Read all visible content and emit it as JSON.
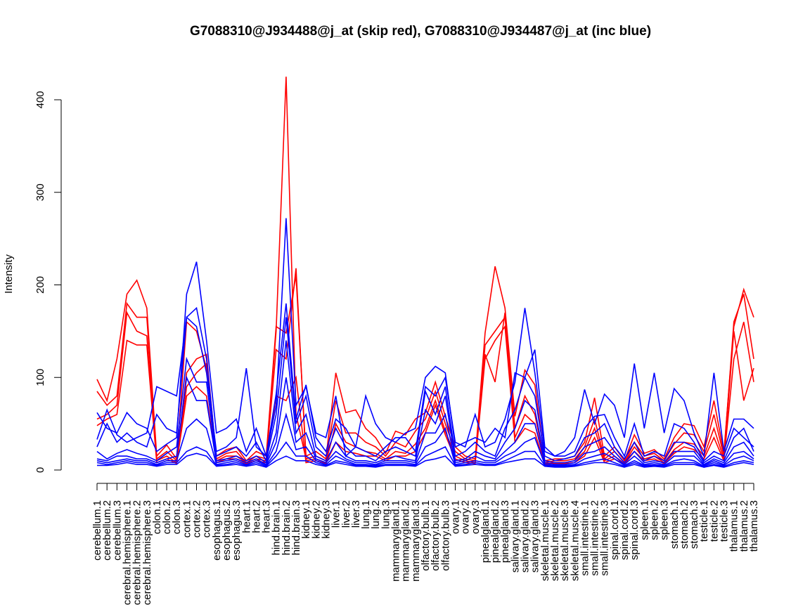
{
  "chart_data": {
    "type": "line",
    "title": "G7088310@J934488@j_at (skip red), G7088310@J934487@j_at (inc blue)",
    "xlabel": "",
    "ylabel": "Intensity",
    "ylim": [
      0,
      420
    ],
    "yticks": [
      0,
      100,
      200,
      300,
      400
    ],
    "grid": false,
    "categories": [
      "cerebellum.1",
      "cerebellum.2",
      "cerebellum.3",
      "cerebral.hemisphere.1",
      "cerebral.hemisphere.2",
      "cerebral.hemisphere.3",
      "colon.1",
      "colon.2",
      "colon.3",
      "cortex.1",
      "cortex.2",
      "cortex.3",
      "esophagus.1",
      "esophagus.2",
      "esophagus.3",
      "heart.1",
      "heart.2",
      "heart.3",
      "hind.brain.1",
      "hind.brain.2",
      "hind.brain.3",
      "kidney.1",
      "kidney.2",
      "kidney.3",
      "liver.1",
      "liver.2",
      "liver.3",
      "lung.1",
      "lung.2",
      "lung.3",
      "mammarygland.1",
      "mammarygland.2",
      "mammarygland.3",
      "olfactory.bulb.1",
      "olfactory.bulb.2",
      "olfactory.bulb.3",
      "ovary.1",
      "ovary.2",
      "ovary.3",
      "pinealgland.1",
      "pinealgland.2",
      "pinealgland.3",
      "salivary.gland.1",
      "salivary.gland.2",
      "salivary.gland.3",
      "skeletal.muscle.1",
      "skeletal.muscle.2",
      "skeletal.muscle.3",
      "skeletal.muscle.4",
      "small.intestine.1",
      "small.intestine.2",
      "small.intestine.3",
      "spinal.cord.1",
      "spinal.cord.2",
      "spinal.cord.3",
      "spleen.1",
      "spleen.2",
      "spleen.3",
      "stomach.1",
      "stomach.2",
      "stomach.3",
      "testicle.1",
      "testicle.2",
      "testicle.3",
      "thalamus.1",
      "thalamus.2",
      "thalamus.3"
    ],
    "series": [
      {
        "color": "#ff0000",
        "values": [
          98,
          75,
          120,
          190,
          205,
          175,
          15,
          27,
          12,
          160,
          150,
          110,
          15,
          22,
          25,
          10,
          20,
          15,
          155,
          148,
          210,
          15,
          20,
          12,
          105,
          62,
          65,
          45,
          35,
          18,
          42,
          38,
          55,
          62,
          95,
          58,
          25,
          15,
          12,
          148,
          220,
          175,
          58,
          108,
          92,
          10,
          12,
          12,
          15,
          30,
          78,
          15,
          25,
          10,
          38,
          18,
          22,
          12,
          35,
          50,
          48,
          25,
          75,
          18,
          155,
          195,
          165
        ]
      },
      {
        "color": "#ff0000",
        "values": [
          85,
          70,
          80,
          180,
          165,
          165,
          12,
          20,
          10,
          105,
          120,
          125,
          12,
          18,
          20,
          8,
          15,
          12,
          150,
          425,
          60,
          12,
          15,
          10,
          75,
          40,
          40,
          30,
          25,
          15,
          30,
          25,
          42,
          55,
          85,
          50,
          20,
          12,
          10,
          135,
          150,
          165,
          45,
          80,
          60,
          8,
          10,
          10,
          12,
          25,
          55,
          12,
          20,
          8,
          30,
          15,
          18,
          10,
          28,
          40,
          38,
          20,
          60,
          15,
          160,
          190,
          120
        ]
      },
      {
        "color": "#ff0000",
        "values": [
          55,
          60,
          70,
          170,
          150,
          145,
          10,
          15,
          8,
          90,
          105,
          115,
          10,
          15,
          15,
          8,
          12,
          10,
          130,
          120,
          218,
          10,
          12,
          8,
          50,
          30,
          25,
          20,
          18,
          12,
          20,
          18,
          28,
          45,
          75,
          42,
          15,
          10,
          8,
          125,
          95,
          170,
          35,
          60,
          50,
          7,
          8,
          8,
          10,
          20,
          45,
          10,
          15,
          7,
          25,
          12,
          15,
          8,
          22,
          30,
          28,
          15,
          45,
          12,
          150,
          75,
          110
        ]
      },
      {
        "color": "#ff0000",
        "values": [
          48,
          55,
          60,
          140,
          135,
          135,
          8,
          12,
          7,
          80,
          90,
          80,
          8,
          12,
          12,
          7,
          10,
          8,
          80,
          75,
          100,
          8,
          10,
          7,
          30,
          20,
          18,
          15,
          15,
          10,
          15,
          15,
          20,
          40,
          70,
          38,
          12,
          8,
          7,
          120,
          140,
          155,
          30,
          45,
          40,
          6,
          7,
          7,
          8,
          15,
          35,
          8,
          12,
          6,
          20,
          10,
          12,
          7,
          18,
          25,
          22,
          12,
          35,
          10,
          120,
          160,
          95
        ]
      },
      {
        "color": "#0000ff",
        "values": [
          62,
          45,
          40,
          62,
          50,
          45,
          20,
          28,
          35,
          190,
          225,
          140,
          40,
          45,
          55,
          20,
          45,
          15,
          70,
          272,
          70,
          90,
          40,
          35,
          80,
          15,
          25,
          80,
          50,
          35,
          30,
          40,
          45,
          100,
          112,
          105,
          25,
          30,
          35,
          30,
          45,
          35,
          105,
          100,
          130,
          25,
          15,
          20,
          35,
          87,
          50,
          82,
          70,
          35,
          115,
          45,
          105,
          40,
          88,
          75,
          40,
          15,
          105,
          20,
          55,
          55,
          45
        ]
      },
      {
        "color": "#0000ff",
        "values": [
          33,
          65,
          38,
          30,
          35,
          40,
          90,
          85,
          80,
          165,
          155,
          105,
          20,
          25,
          35,
          110,
          25,
          15,
          82,
          180,
          55,
          92,
          35,
          20,
          55,
          45,
          25,
          20,
          15,
          25,
          35,
          35,
          20,
          90,
          80,
          100,
          30,
          25,
          60,
          25,
          30,
          55,
          95,
          175,
          105,
          20,
          15,
          15,
          20,
          45,
          58,
          60,
          35,
          15,
          50,
          15,
          20,
          15,
          50,
          45,
          30,
          10,
          20,
          15,
          45,
          35,
          25
        ]
      },
      {
        "color": "#0000ff",
        "values": [
          25,
          50,
          30,
          40,
          30,
          25,
          60,
          45,
          40,
          165,
          175,
          120,
          15,
          20,
          25,
          15,
          30,
          10,
          60,
          165,
          50,
          80,
          25,
          15,
          45,
          25,
          15,
          15,
          10,
          20,
          25,
          20,
          15,
          85,
          60,
          90,
          15,
          20,
          30,
          20,
          15,
          45,
          65,
          100,
          80,
          15,
          10,
          12,
          15,
          35,
          40,
          50,
          25,
          12,
          30,
          10,
          15,
          10,
          30,
          30,
          25,
          8,
          15,
          10,
          35,
          45,
          20
        ]
      },
      {
        "color": "#0000ff",
        "values": [
          20,
          12,
          18,
          22,
          18,
          15,
          10,
          18,
          25,
          120,
          95,
          95,
          10,
          12,
          15,
          10,
          15,
          8,
          40,
          140,
          40,
          60,
          15,
          10,
          30,
          15,
          10,
          10,
          8,
          12,
          15,
          12,
          10,
          65,
          50,
          80,
          10,
          12,
          20,
          15,
          12,
          30,
          45,
          75,
          65,
          10,
          8,
          8,
          10,
          25,
          30,
          35,
          20,
          8,
          20,
          8,
          10,
          8,
          20,
          20,
          20,
          6,
          12,
          8,
          25,
          30,
          15
        ]
      },
      {
        "color": "#0000ff",
        "values": [
          12,
          10,
          15,
          15,
          12,
          12,
          8,
          12,
          15,
          100,
          75,
          75,
          8,
          10,
          12,
          8,
          12,
          6,
          30,
          100,
          30,
          40,
          12,
          8,
          20,
          12,
          8,
          8,
          6,
          10,
          10,
          10,
          8,
          40,
          40,
          60,
          8,
          10,
          15,
          10,
          10,
          20,
          30,
          50,
          50,
          8,
          6,
          6,
          8,
          18,
          20,
          25,
          15,
          6,
          15,
          6,
          8,
          6,
          15,
          15,
          15,
          5,
          10,
          6,
          18,
          20,
          12
        ]
      },
      {
        "color": "#0000ff",
        "values": [
          10,
          8,
          10,
          12,
          10,
          10,
          6,
          10,
          10,
          45,
          55,
          45,
          6,
          8,
          10,
          6,
          10,
          5,
          20,
          60,
          22,
          25,
          10,
          6,
          15,
          10,
          6,
          6,
          5,
          8,
          8,
          8,
          6,
          25,
          30,
          45,
          6,
          8,
          10,
          8,
          8,
          15,
          20,
          30,
          35,
          6,
          5,
          5,
          6,
          12,
          15,
          18,
          12,
          5,
          10,
          5,
          6,
          5,
          10,
          12,
          10,
          4,
          8,
          5,
          12,
          15,
          10
        ]
      },
      {
        "color": "#0000ff",
        "values": [
          8,
          6,
          8,
          10,
          8,
          8,
          5,
          8,
          8,
          20,
          25,
          20,
          5,
          6,
          8,
          5,
          8,
          4,
          15,
          30,
          15,
          15,
          8,
          5,
          10,
          8,
          5,
          5,
          4,
          6,
          6,
          6,
          5,
          15,
          20,
          25,
          5,
          6,
          8,
          6,
          6,
          10,
          15,
          20,
          20,
          5,
          4,
          4,
          5,
          8,
          10,
          12,
          8,
          4,
          8,
          4,
          5,
          4,
          8,
          8,
          8,
          3,
          6,
          4,
          8,
          10,
          8
        ]
      },
      {
        "color": "#0000ff",
        "values": [
          5,
          5,
          6,
          8,
          6,
          6,
          4,
          6,
          6,
          15,
          18,
          15,
          4,
          5,
          6,
          4,
          6,
          3,
          10,
          15,
          10,
          10,
          6,
          4,
          8,
          6,
          4,
          4,
          3,
          5,
          5,
          5,
          4,
          10,
          12,
          15,
          4,
          5,
          6,
          5,
          5,
          8,
          10,
          12,
          12,
          4,
          3,
          3,
          4,
          6,
          8,
          8,
          6,
          3,
          6,
          3,
          4,
          3,
          6,
          6,
          6,
          3,
          5,
          3,
          6,
          8,
          6
        ]
      }
    ]
  }
}
